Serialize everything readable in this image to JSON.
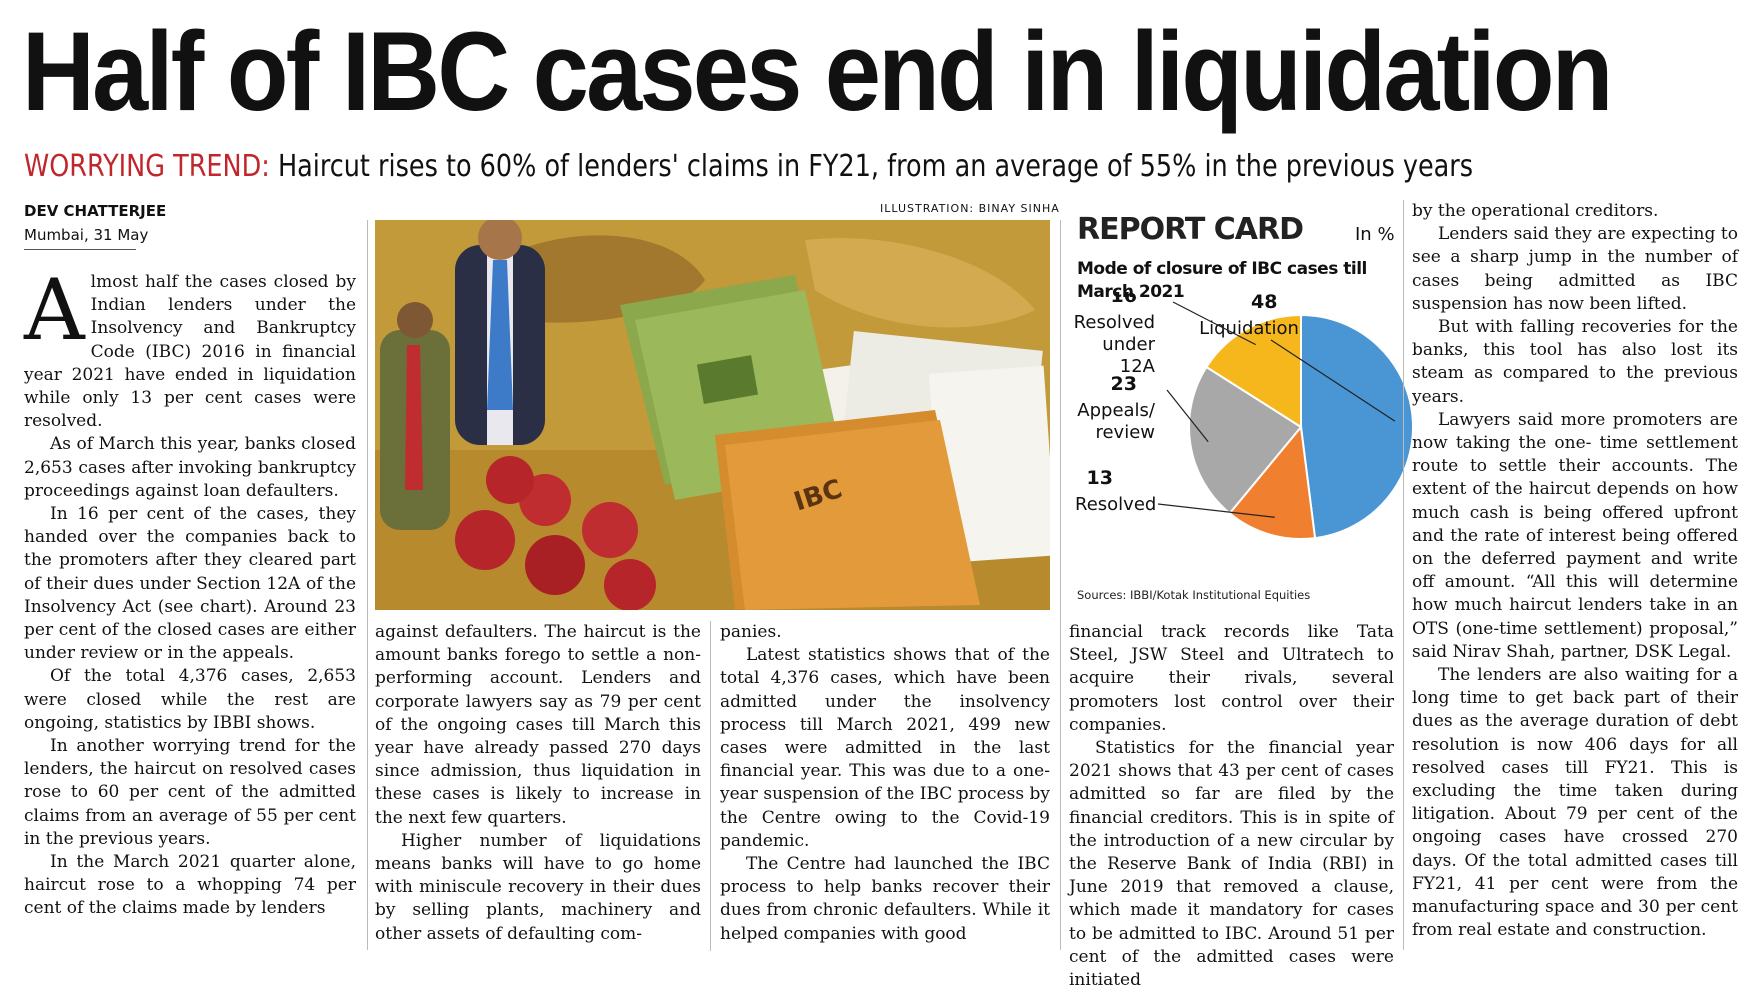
{
  "headline": "Half of IBC cases end in liquidation",
  "deck": {
    "kicker": "WORRYING TREND:",
    "text": " Haircut rises to 60% of lenders' claims in FY21, from an average of 55% in the previous years"
  },
  "byline": "DEV CHATTERJEE",
  "dateline": "Mumbai, 31 May",
  "illustration_credit": "ILLUSTRATION: BINAY SINHA",
  "illustration_label": "IBC",
  "report_card": {
    "title": "REPORT CARD",
    "unit": "In %",
    "subtitle": "Mode of closure of IBC cases till March 2021",
    "source": "Sources: IBBI/Kotak Institutional Equities"
  },
  "chart_data": {
    "type": "pie",
    "title": "Mode of closure of IBC cases till March 2021",
    "unit": "In %",
    "slices": [
      {
        "label": "Liquidation",
        "value": 48,
        "color": "#4a95d3"
      },
      {
        "label": "Resolved",
        "value": 13,
        "color": "#f07f2f"
      },
      {
        "label": "Appeals/ review",
        "value": 23,
        "color": "#a8a8a8"
      },
      {
        "label": "Resolved under 12A",
        "value": 16,
        "color": "#f6b71c"
      }
    ]
  },
  "columns": {
    "col1": {
      "dropcap": "A",
      "p1": "lmost half the cases closed by Indian lenders under the Insolvency and Bankruptcy Code (IBC) 2016 in financial year 2021 have ended in liquidation while only 13 per cent cases were resolved.",
      "p2": "As of March this year, banks closed 2,653 cases after invoking bankruptcy proceedings against loan defaulters.",
      "p3": "In 16 per cent of the cases, they handed over the companies back to the promoters after they cleared part of their dues under Section 12A of the Insolvency Act (see chart). Around 23 per cent of the closed cases are either under review or in the appeals.",
      "p4": "Of the total 4,376 cases, 2,653 were closed while the rest are ongoing, statistics by IBBI shows.",
      "p5": "In another worrying trend for the lenders, the haircut on resolved cases rose to 60 per cent of the admitted claims from an average of 55 per cent in the previous years.",
      "p6": "In the March 2021 quarter alone, haircut rose to a whopping 74 per cent of the claims made by lenders"
    },
    "col2": {
      "p1": "against defaulters. The haircut is the amount banks forego to settle a non-performing account. Lenders and corporate lawyers say as 79 per cent of the ongoing cases till March this year have already passed 270 days since admission, thus liquidation in these cases is likely to increase in the next few quarters.",
      "p2": "Higher number of liquidations means banks will have to go home with miniscule recovery in their dues by selling plants, machinery and other assets of defaulting com-"
    },
    "col3": {
      "p1": "panies.",
      "p2": "Latest statistics shows that of the total 4,376 cases, which have been admitted under the insolvency process till March 2021, 499 new cases were admitted in the last financial year. This was due to a one-year suspension of the IBC process by the Centre owing to the Covid-19 pandemic.",
      "p3": "The Centre had launched the IBC process to help banks recover their dues from chronic defaulters. While it helped companies with good"
    },
    "col4": {
      "p1": "financial track records like Tata Steel, JSW Steel and Ultratech to acquire their rivals, several promoters lost control over their companies.",
      "p2": "Statistics for the financial year 2021 shows that 43 per cent of cases admitted so far are filed by the financial creditors. This is in spite of the introduction of a new circular by the Reserve Bank of India (RBI) in June 2019 that removed a clause, which made it mandatory for cases to be admitted to IBC. Around 51 per cent of the admitted cases were initiated"
    },
    "col5": {
      "p1": "by the operational creditors.",
      "p2": "Lenders said they are expecting to see a sharp jump in the number of cases being admitted as IBC suspension has now been lifted.",
      "p3": "But with falling recoveries for the banks, this tool has also lost its steam as compared to the previous years.",
      "p4": "Lawyers said more promoters are now taking the one- time settlement route to settle their accounts. The extent of the haircut depends on how much cash is being offered upfront and the rate of interest being offered on the deferred payment and write off amount. “All this will determine how much haircut lenders take in an OTS (one-time settlement) proposal,” said Nirav Shah, partner, DSK Legal.",
      "p5": "The lenders are also waiting for a long time to get back part of their dues as the average duration of debt resolution is now 406 days for all resolved cases till FY21. This is excluding the time taken during litigation. About 79 per cent of the ongoing cases have crossed 270 days. Of the total admitted cases till FY21, 41 per cent were from the manufacturing space and 30 per cent from real estate and construction."
    }
  }
}
